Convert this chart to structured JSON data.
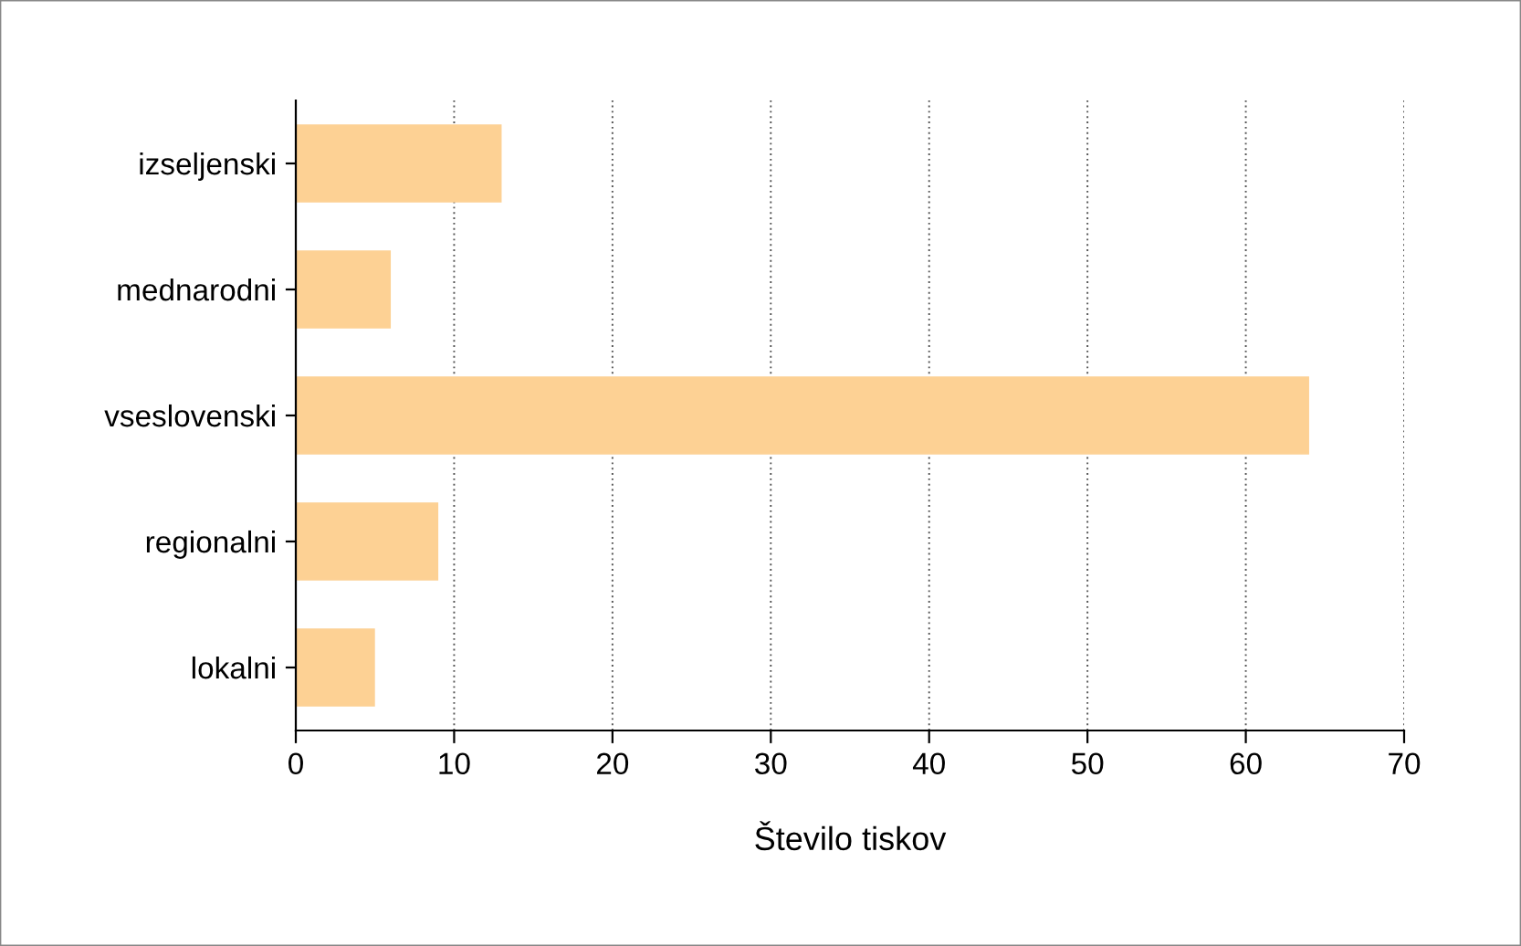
{
  "chart_data": {
    "type": "bar",
    "orientation": "horizontal",
    "xlabel": "Število tiskov",
    "categories": [
      "izseljenski",
      "mednarodni",
      "vseslovenski",
      "regionalni",
      "lokalni"
    ],
    "values": [
      13,
      6,
      64,
      9,
      5
    ],
    "color": "#fdd194",
    "xlim": [
      0,
      70
    ],
    "xticks": [
      0,
      10,
      20,
      30,
      40,
      50,
      60,
      70
    ],
    "grid": "x"
  }
}
